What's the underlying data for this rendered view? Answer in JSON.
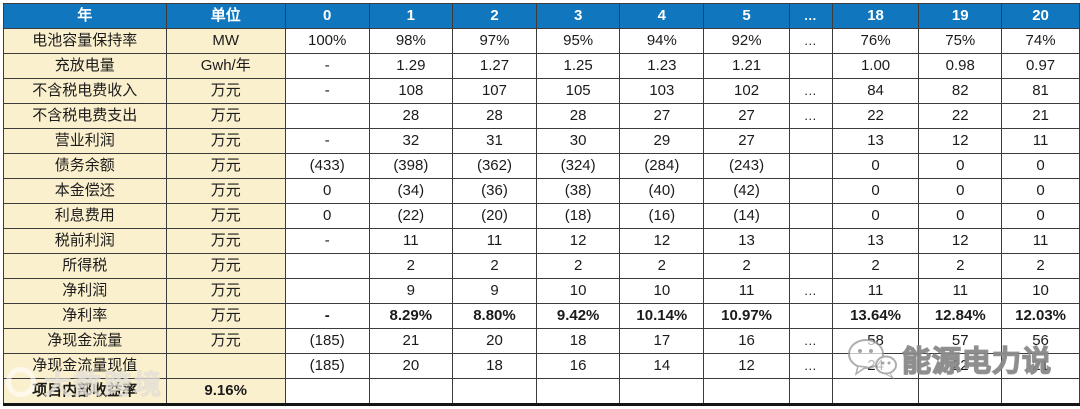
{
  "table": {
    "columns": [
      "年",
      "单位",
      "0",
      "1",
      "2",
      "3",
      "4",
      "5",
      "…",
      "18",
      "19",
      "20"
    ],
    "rows": [
      {
        "label": "电池容量保持率",
        "unit": "MW",
        "values": [
          "100%",
          "98%",
          "97%",
          "95%",
          "94%",
          "92%",
          "…",
          "76%",
          "75%",
          "74%"
        ]
      },
      {
        "label": "充放电量",
        "unit": "Gwh/年",
        "values": [
          "-",
          "1.29",
          "1.27",
          "1.25",
          "1.23",
          "1.21",
          "",
          "1.00",
          "0.98",
          "0.97"
        ]
      },
      {
        "label": "不含税电费收入",
        "unit": "万元",
        "values": [
          "-",
          "108",
          "107",
          "105",
          "103",
          "102",
          "…",
          "84",
          "82",
          "81"
        ]
      },
      {
        "label": "不含税电费支出",
        "unit": "万元",
        "values": [
          "",
          "28",
          "28",
          "28",
          "27",
          "27",
          "…",
          "22",
          "22",
          "21"
        ]
      },
      {
        "label": "营业利润",
        "unit": "万元",
        "values": [
          "-",
          "32",
          "31",
          "30",
          "29",
          "27",
          "",
          "13",
          "12",
          "11"
        ]
      },
      {
        "label": "债务余额",
        "unit": "万元",
        "values": [
          "(433)",
          "(398)",
          "(362)",
          "(324)",
          "(284)",
          "(243)",
          "",
          "0",
          "0",
          "0"
        ]
      },
      {
        "label": "本金偿还",
        "unit": "万元",
        "values": [
          "0",
          "(34)",
          "(36)",
          "(38)",
          "(40)",
          "(42)",
          "",
          "0",
          "0",
          "0"
        ]
      },
      {
        "label": "利息费用",
        "unit": "万元",
        "values": [
          "0",
          "(22)",
          "(20)",
          "(18)",
          "(16)",
          "(14)",
          "",
          "0",
          "0",
          "0"
        ]
      },
      {
        "label": "税前利润",
        "unit": "万元",
        "values": [
          "-",
          "11",
          "11",
          "12",
          "12",
          "13",
          "",
          "13",
          "12",
          "11"
        ]
      },
      {
        "label": "所得税",
        "unit": "万元",
        "values": [
          "",
          "2",
          "2",
          "2",
          "2",
          "2",
          "",
          "2",
          "2",
          "2"
        ]
      },
      {
        "label": "净利润",
        "unit": "万元",
        "values": [
          "",
          "9",
          "9",
          "10",
          "10",
          "11",
          "…",
          "11",
          "11",
          "10"
        ]
      },
      {
        "label": "净利率",
        "unit": "万元",
        "values": [
          "-",
          "8.29%",
          "8.80%",
          "9.42%",
          "10.14%",
          "10.97%",
          "",
          "13.64%",
          "12.84%",
          "12.03%"
        ],
        "bold_values": true
      },
      {
        "label": "净现金流量",
        "unit": "万元",
        "values": [
          "(185)",
          "21",
          "20",
          "18",
          "17",
          "16",
          "…",
          "58",
          "57",
          "56"
        ]
      },
      {
        "label": "净现金流量现值",
        "unit": "",
        "values": [
          "(185)",
          "20",
          "18",
          "16",
          "14",
          "12",
          "…",
          "24",
          "22",
          "21"
        ]
      },
      {
        "label": "项目内部收益率",
        "unit": "9.16%",
        "values": [
          "",
          "",
          "",
          "",
          "",
          "",
          "",
          "",
          "",
          ""
        ],
        "bold_row": true
      }
    ]
  },
  "watermarks": {
    "right": "能源电力说",
    "left": "大数跨境"
  },
  "colors": {
    "header_blue": "#1076BD",
    "label_cream": "#FBF0CE",
    "border": "#3c3c3c"
  }
}
